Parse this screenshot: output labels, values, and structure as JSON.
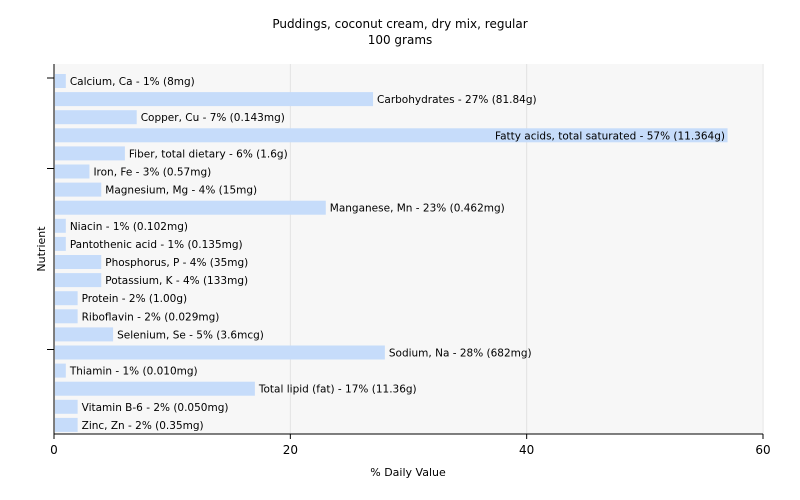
{
  "chart_data": {
    "type": "bar",
    "orientation": "horizontal",
    "title": "Puddings, coconut cream, dry mix, regular",
    "subtitle": "100 grams",
    "xlabel": "% Daily Value",
    "ylabel": "Nutrient",
    "xlim": [
      0,
      60
    ],
    "xticks": [
      0,
      20,
      40,
      60
    ],
    "grid": true,
    "bar_color": "#c6dcfa",
    "categories": [
      "Calcium, Ca",
      "Carbohydrates",
      "Copper, Cu",
      "Fatty acids, total saturated",
      "Fiber, total dietary",
      "Iron, Fe",
      "Magnesium, Mg",
      "Manganese, Mn",
      "Niacin",
      "Pantothenic acid",
      "Phosphorus, P",
      "Potassium, K",
      "Protein",
      "Riboflavin",
      "Selenium, Se",
      "Sodium, Na",
      "Thiamin",
      "Total lipid (fat)",
      "Vitamin B-6",
      "Zinc, Zn"
    ],
    "values": [
      1,
      27,
      7,
      57,
      6,
      3,
      4,
      23,
      1,
      1,
      4,
      4,
      2,
      2,
      5,
      28,
      1,
      17,
      2,
      2
    ],
    "labels": [
      "Calcium, Ca - 1% (8mg)",
      "Carbohydrates - 27% (81.84g)",
      "Copper, Cu - 7% (0.143mg)",
      "Fatty acids, total saturated - 57% (11.364g)",
      "Fiber, total dietary - 6% (1.6g)",
      "Iron, Fe - 3% (0.57mg)",
      "Magnesium, Mg - 4% (15mg)",
      "Manganese, Mn - 23% (0.462mg)",
      "Niacin - 1% (0.102mg)",
      "Pantothenic acid - 1% (0.135mg)",
      "Phosphorus, P - 4% (35mg)",
      "Potassium, K - 4% (133mg)",
      "Protein - 2% (1.00g)",
      "Riboflavin - 2% (0.029mg)",
      "Selenium, Se - 5% (3.6mcg)",
      "Sodium, Na - 28% (682mg)",
      "Thiamin - 1% (0.010mg)",
      "Total lipid (fat) - 17% (11.36g)",
      "Vitamin B-6 - 2% (0.050mg)",
      "Zinc, Zn - 2% (0.35mg)"
    ]
  }
}
